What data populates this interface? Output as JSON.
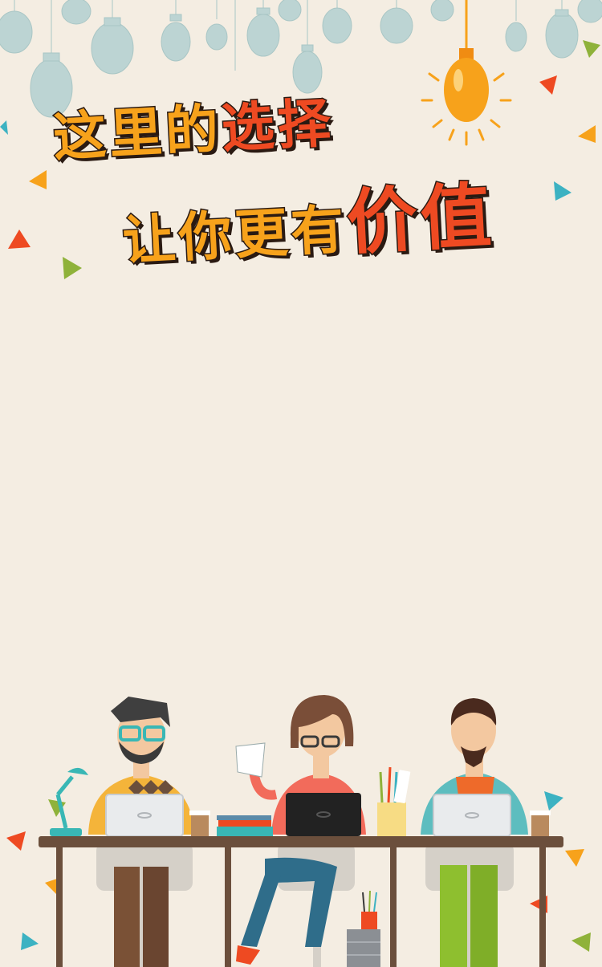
{
  "headline": {
    "line1": {
      "part_a": "这里的",
      "part_b": "选择"
    },
    "line2": {
      "part_a": "让你更有",
      "part_b": "价值"
    }
  },
  "colors": {
    "background": "#f4ede2",
    "title_orange": "#f7a21b",
    "title_red": "#ee4a22",
    "bulb_light": "#b9d3d2",
    "bulb_lit": "#f7a21b",
    "table": "#6b4f3c"
  },
  "icons": [
    "light-bulb-icon",
    "triangle-confetti-icon",
    "laptop-icon",
    "desk-lamp-icon",
    "coffee-cup-icon",
    "pencil-cup-icon"
  ]
}
